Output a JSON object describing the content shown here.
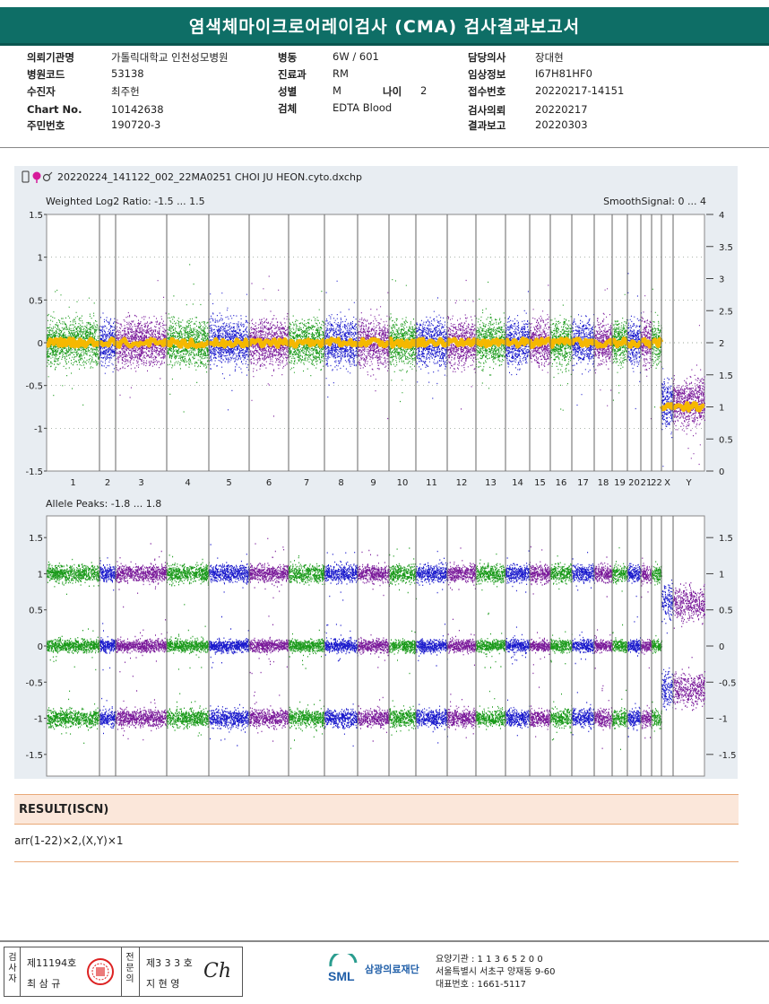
{
  "header": {
    "title": "염색체마이크로어레이검사 (CMA) 검사결과보고서",
    "fields": [
      {
        "label": "의뢰기관명",
        "value": "가톨릭대학교 인천성모병원"
      },
      {
        "label": "병원코드",
        "value": "53138"
      },
      {
        "label": "수진자",
        "value": "최주헌"
      },
      {
        "label": "Chart No.",
        "value": "10142638"
      },
      {
        "label": "주민번호",
        "value": "190720-3"
      },
      {
        "label": "병동",
        "value": "6W / 601"
      },
      {
        "label": "진료과",
        "value": "RM"
      },
      {
        "label": "성별",
        "value": "M"
      },
      {
        "label": "나이",
        "value": "2"
      },
      {
        "label": "검체",
        "value": "EDTA Blood"
      },
      {
        "label": "담당의사",
        "value": "장대현"
      },
      {
        "label": "임상정보",
        "value": "I67H81HF0"
      },
      {
        "label": "접수번호",
        "value": "20220217-14151"
      },
      {
        "label": "검사의뢰",
        "value": "20220217"
      },
      {
        "label": "결과보고",
        "value": "20220303"
      }
    ]
  },
  "plot": {
    "filename": "20220224_141122_002_22MA0251 CHOI JU HEON.cyto.dxchp",
    "top_title_left": "Weighted Log2 Ratio: -1.5 ... 1.5",
    "top_title_right": "SmoothSignal: 0 ... 4",
    "bottom_title": "Allele Peaks: -1.8 ... 1.8",
    "colors": {
      "green": "#1a9a1a",
      "blue": "#1a1acc",
      "purple": "#7a1a9a",
      "smooth": "#f5b800",
      "grid": "#7a8a7a"
    }
  },
  "chart_data": [
    {
      "type": "scatter",
      "title": "Weighted Log2 Ratio: -1.5 ... 1.5",
      "left_ylim": [
        -1.5,
        1.5
      ],
      "left_yticks": [
        "1.5",
        "1",
        "0.5",
        "0",
        "-0.5",
        "-1",
        "-1.5"
      ],
      "right_ylim": [
        0,
        4
      ],
      "right_yticks": [
        "4",
        "3.5",
        "3",
        "2.5",
        "2",
        "1.5",
        "1",
        "0.5",
        "0"
      ],
      "right_label": "SmoothSignal: 0 ... 4",
      "categories": [
        "1",
        "2",
        "3",
        "4",
        "5",
        "6",
        "7",
        "8",
        "9",
        "10",
        "11",
        "12",
        "13",
        "14",
        "15",
        "16",
        "17",
        "18",
        "19",
        "20",
        "21",
        "22",
        "X",
        "Y"
      ],
      "series": [
        {
          "name": "SmoothSignal",
          "values": [
            2,
            2,
            2,
            2,
            2,
            2,
            2,
            2,
            2,
            2,
            2,
            2,
            2,
            2,
            2,
            2,
            2,
            2,
            2,
            2,
            2,
            2,
            1,
            1
          ]
        }
      ]
    },
    {
      "type": "scatter",
      "title": "Allele Peaks: -1.8 ... 1.8",
      "ylim": [
        -1.8,
        1.8
      ],
      "left_yticks": [
        "1.5",
        "1",
        "0.5",
        "0",
        "-0.5",
        "-1",
        "-1.5"
      ],
      "right_yticks": [
        "1.5",
        "1",
        "0.5",
        "0",
        "-0.5",
        "-1",
        "-1.5"
      ],
      "categories": [
        "1",
        "2",
        "3",
        "4",
        "5",
        "6",
        "7",
        "8",
        "9",
        "10",
        "11",
        "12",
        "13",
        "14",
        "15",
        "16",
        "17",
        "18",
        "19",
        "20",
        "21",
        "22",
        "X",
        "Y"
      ]
    }
  ],
  "result": {
    "heading": "RESULT(ISCN)",
    "value": "arr(1-22)×2,(X,Y)×1"
  },
  "footer": {
    "inspector_vertical": "검사자",
    "inspector_license": "제11194호",
    "inspector_name": "최 삼 규",
    "specialist_vertical": "전문의",
    "specialist_license": "제3 3 3 호",
    "specialist_name": "지 현 영",
    "signature": "Ch",
    "logo_text": "SML",
    "org_name": "삼광의료재단",
    "lab_code": "요양기관 : 1 1 3 6 5 2 0 0",
    "address": "서울특별시 서초구 양재동 9-60",
    "phone": "대표번호 : 1661-5117"
  }
}
